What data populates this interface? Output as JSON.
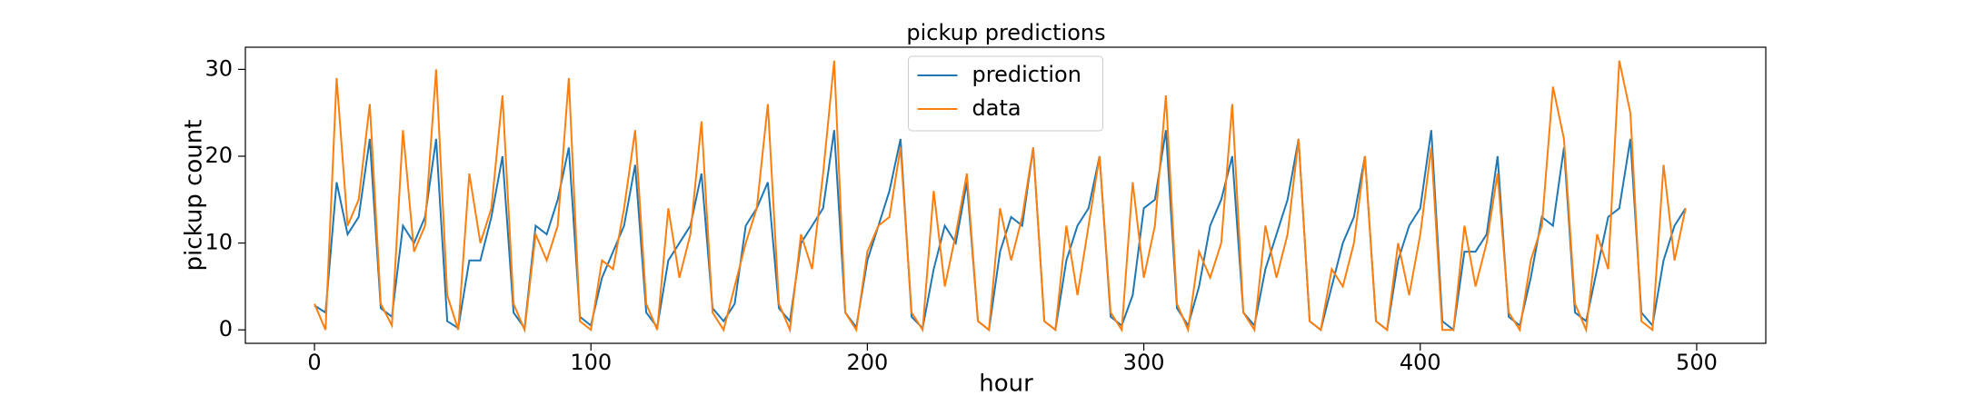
{
  "chart_data": {
    "type": "line",
    "title": "pickup predictions",
    "x_label": "hour",
    "y_label": "pickup count",
    "x": [
      0,
      4,
      8,
      12,
      16,
      20,
      24,
      28,
      32,
      36,
      40,
      44,
      48,
      52,
      56,
      60,
      64,
      68,
      72,
      76,
      80,
      84,
      88,
      92,
      96,
      100,
      104,
      108,
      112,
      116,
      120,
      124,
      128,
      132,
      136,
      140,
      144,
      148,
      152,
      156,
      160,
      164,
      168,
      172,
      176,
      180,
      184,
      188,
      192,
      196,
      200,
      204,
      208,
      212,
      216,
      220,
      224,
      228,
      232,
      236,
      240,
      244,
      248,
      252,
      256,
      260,
      264,
      268,
      272,
      276,
      280,
      284,
      288,
      292,
      296,
      300,
      304,
      308,
      312,
      316,
      320,
      324,
      328,
      332,
      336,
      340,
      344,
      348,
      352,
      356,
      360,
      364,
      368,
      372,
      376,
      380,
      384,
      388,
      392,
      396,
      400,
      404,
      408,
      412,
      416,
      420,
      424,
      428,
      432,
      436,
      440,
      444,
      448,
      452,
      456,
      460,
      464,
      468,
      472,
      476,
      480,
      484,
      488,
      492,
      496
    ],
    "series": [
      {
        "name": "prediction",
        "color": "#1f77b4",
        "values": [
          2.8,
          2,
          17,
          11,
          13,
          22,
          2.5,
          1.5,
          12,
          10,
          13,
          22,
          1,
          0.2,
          8,
          8,
          13,
          20,
          2,
          0.2,
          12,
          11,
          15,
          21,
          1.5,
          0.5,
          6,
          9,
          12,
          19,
          2,
          0.3,
          8,
          10,
          12,
          18,
          2.5,
          1,
          3,
          12,
          14,
          17,
          2.5,
          1,
          10,
          12,
          14,
          23,
          2,
          0.3,
          8,
          12,
          16,
          22,
          1.5,
          0.2,
          7,
          12,
          10,
          17,
          1,
          0,
          9,
          13,
          12,
          21,
          1,
          0,
          8,
          12,
          14,
          20,
          1.5,
          0.5,
          4,
          14,
          15,
          23,
          2.5,
          0.5,
          5,
          12,
          15,
          20,
          2,
          0.5,
          7,
          11,
          15,
          22,
          1,
          0,
          5,
          10,
          13,
          20,
          1,
          0,
          8,
          12,
          14,
          23,
          1,
          0,
          9,
          9,
          11,
          20,
          1.5,
          0.5,
          6,
          13,
          12,
          21,
          2,
          1,
          7,
          13,
          14,
          22,
          2,
          0.5,
          8,
          12,
          14
        ]
      },
      {
        "name": "data",
        "color": "#ff7f0e",
        "values": [
          3,
          0,
          29,
          12,
          15,
          26,
          3,
          0.5,
          23,
          9,
          12,
          30,
          4,
          0,
          18,
          10,
          14,
          27,
          3,
          0,
          11,
          8,
          12,
          29,
          1,
          0,
          8,
          7,
          14,
          23,
          3,
          0,
          14,
          6,
          11,
          24,
          2,
          0,
          5,
          10,
          14,
          26,
          3,
          0,
          11,
          7,
          18,
          31,
          2,
          0,
          9,
          12,
          13,
          21,
          2,
          0,
          16,
          5,
          11,
          18,
          1,
          0,
          14,
          8,
          13,
          21,
          1,
          0,
          12,
          4,
          12,
          20,
          2,
          0,
          17,
          6,
          12,
          27,
          3,
          0,
          9,
          6,
          10,
          26,
          2,
          0,
          12,
          6,
          11,
          22,
          1,
          0,
          7,
          5,
          10,
          20,
          1,
          0,
          10,
          4,
          11,
          21,
          0,
          0,
          12,
          5,
          10,
          18,
          2,
          0,
          8,
          12,
          28,
          22,
          3,
          0,
          11,
          7,
          31,
          25,
          1,
          0,
          19,
          8,
          14
        ]
      }
    ],
    "xlim": [
      -25,
      525
    ],
    "ylim": [
      -1.55,
      32.55
    ],
    "xticks": [
      0,
      100,
      200,
      300,
      400,
      500
    ],
    "yticks": [
      0,
      10,
      20,
      30
    ],
    "legend": "upper center"
  }
}
